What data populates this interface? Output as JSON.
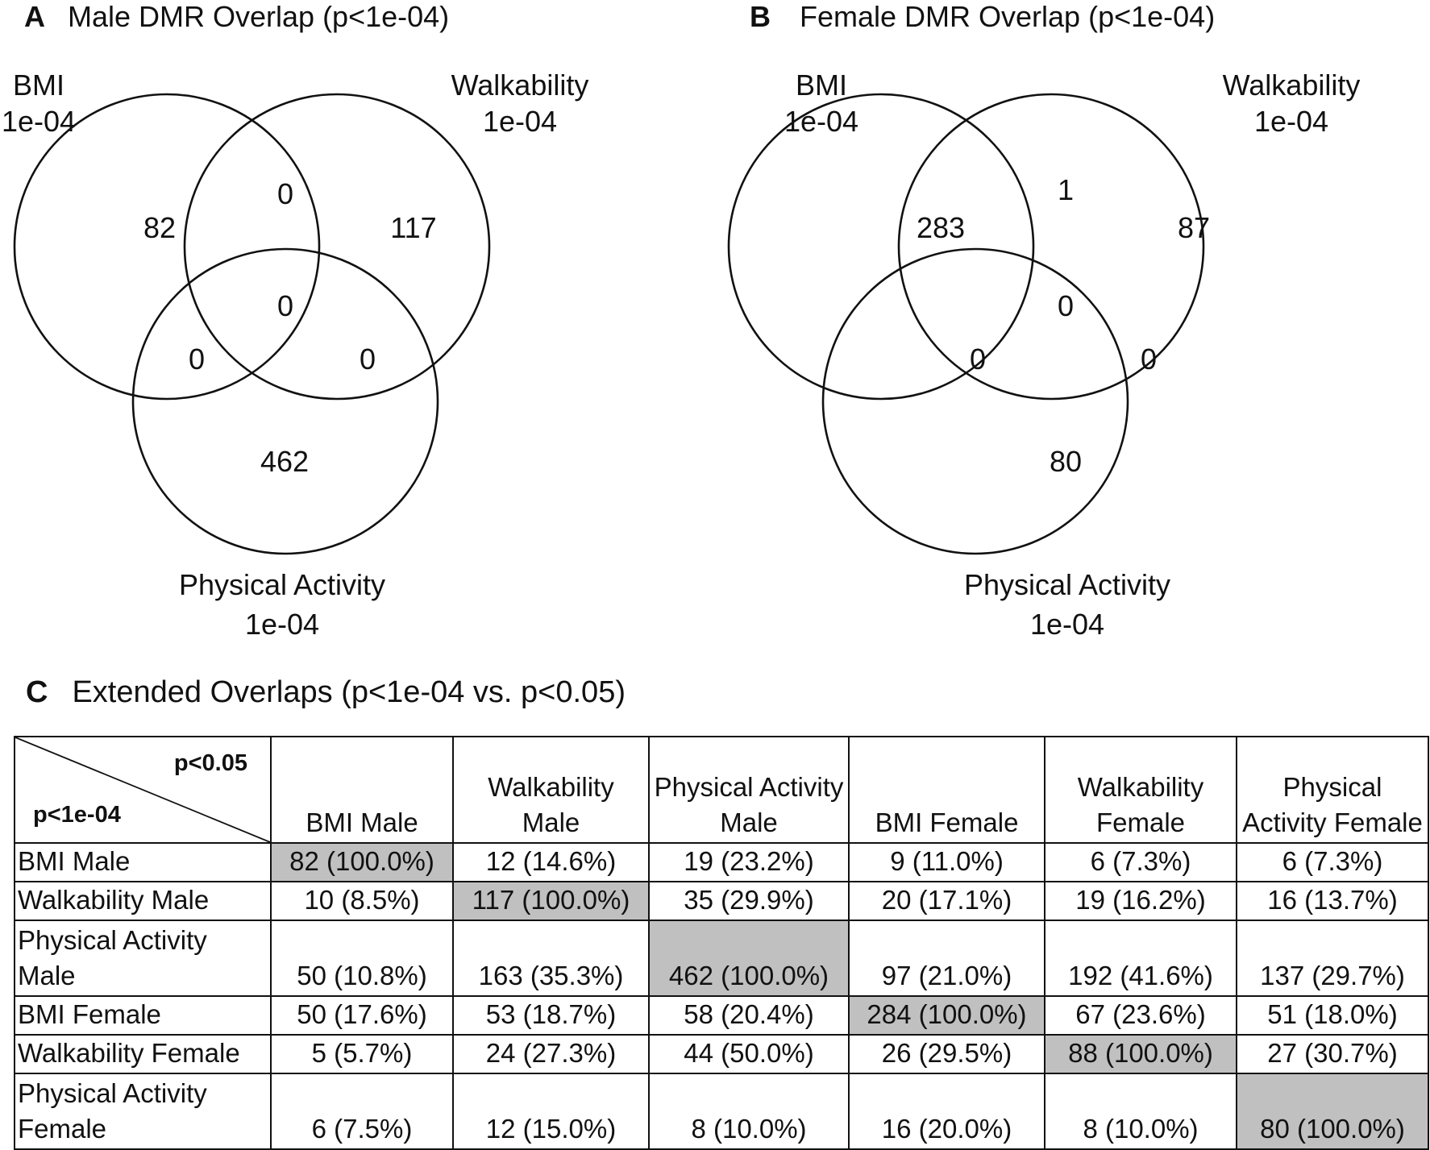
{
  "panels": [
    {
      "letter": "A",
      "title": "Male DMR Overlap (p<1e-04)",
      "sets": [
        {
          "name": "BMI",
          "threshold": "1e-04"
        },
        {
          "name": "Walkability",
          "threshold": "1e-04"
        },
        {
          "name": "Physical Activity",
          "threshold": "1e-04"
        }
      ],
      "regions": {
        "bmi_only": "82",
        "walk_only": "117",
        "pa_only": "462",
        "bmi_walk": "0",
        "bmi_pa": "0",
        "walk_pa": "0",
        "all_three": "0"
      }
    },
    {
      "letter": "B",
      "title": "Female DMR Overlap (p<1e-04)",
      "sets": [
        {
          "name": "BMI",
          "threshold": "1e-04"
        },
        {
          "name": "Walkability",
          "threshold": "1e-04"
        },
        {
          "name": "Physical Activity",
          "threshold": "1e-04"
        }
      ],
      "regions": {
        "bmi_only": "283",
        "walk_only": "87",
        "pa_only": "80",
        "bmi_walk": "1",
        "bmi_pa": "0",
        "walk_pa": "0",
        "all_three": "0"
      }
    }
  ],
  "table": {
    "letter": "C",
    "title": "Extended Overlaps (p<1e-04 vs. p<0.05)",
    "corner_top": "p<0.05",
    "corner_bottom": "p<1e-04",
    "columns": [
      "BMI Male",
      "Walkability Male",
      "Physical Activity Male",
      "BMI Female",
      "Walkability Female",
      "Physical Activity Female"
    ],
    "rows": [
      {
        "label": "BMI Male",
        "cells": [
          "82 (100.0%)",
          "12 (14.6%)",
          "19 (23.2%)",
          "9 (11.0%)",
          "6 (7.3%)",
          "6 (7.3%)"
        ]
      },
      {
        "label": "Walkability Male",
        "cells": [
          "10 (8.5%)",
          "117 (100.0%)",
          "35 (29.9%)",
          "20 (17.1%)",
          "19 (16.2%)",
          "16 (13.7%)"
        ]
      },
      {
        "label": "Physical Activity Male",
        "cells": [
          "50 (10.8%)",
          "163 (35.3%)",
          "462 (100.0%)",
          "97 (21.0%)",
          "192 (41.6%)",
          "137 (29.7%)"
        ]
      },
      {
        "label": "BMI Female",
        "cells": [
          "50 (17.6%)",
          "53 (18.7%)",
          "58 (20.4%)",
          "284 (100.0%)",
          "67 (23.6%)",
          "51 (18.0%)"
        ]
      },
      {
        "label": "Walkability Female",
        "cells": [
          "5 (5.7%)",
          "24 (27.3%)",
          "44 (50.0%)",
          "26 (29.5%)",
          "88 (100.0%)",
          "27 (30.7%)"
        ]
      },
      {
        "label": "Physical Activity Female",
        "cells": [
          "6 (7.5%)",
          "12 (15.0%)",
          "8 (10.0%)",
          "16 (20.0%)",
          "8 (10.0%)",
          "80 (100.0%)"
        ]
      }
    ],
    "highlight_color": "#c0c0c0"
  }
}
